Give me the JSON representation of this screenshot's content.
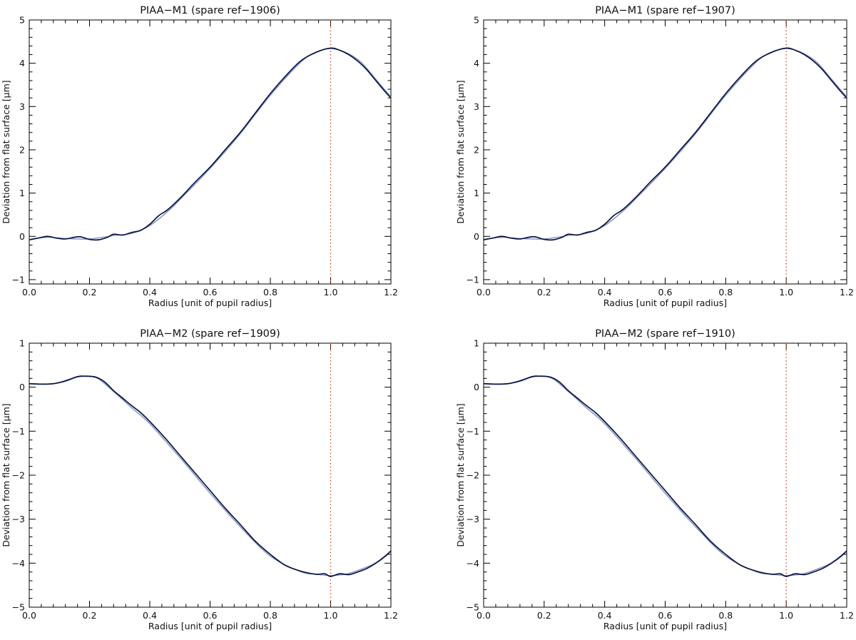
{
  "chart_data": [
    {
      "type": "line",
      "title": "PIAA−M1 (spare ref−1906)",
      "xlabel": "Radius [unit of pupil radius]",
      "ylabel": "Deviation from flat surface [",
      "ylabel_unit": "μm]",
      "xlim": [
        0,
        1.2
      ],
      "ylim": [
        -1.1,
        5
      ],
      "xticks": [
        "0.0",
        "0.2",
        "0.4",
        "0.6",
        "0.8",
        "1.0",
        "1.2"
      ],
      "yticks": [
        "−1",
        "0",
        "1",
        "2",
        "3",
        "4",
        "5"
      ],
      "ref_line_x": 1.0,
      "grid": false,
      "colors": {
        "measured": "#0b1440",
        "design": "#7f8fc7",
        "ref": "#d24a2a"
      },
      "series": [
        {
          "x": [
            0,
            0.03,
            0.06,
            0.09,
            0.12,
            0.15,
            0.17,
            0.2,
            0.23,
            0.26,
            0.28,
            0.31,
            0.34,
            0.37,
            0.4,
            0.43,
            0.46,
            0.5,
            0.55,
            0.6,
            0.65,
            0.7,
            0.75,
            0.8,
            0.85,
            0.9,
            0.95,
            1.0,
            1.03,
            1.06,
            1.09,
            1.12,
            1.15,
            1.18,
            1.2
          ],
          "values": [
            -0.08,
            -0.04,
            0.0,
            -0.04,
            -0.06,
            -0.02,
            -0.01,
            -0.07,
            -0.08,
            -0.02,
            0.05,
            0.03,
            0.09,
            0.14,
            0.28,
            0.48,
            0.62,
            0.88,
            1.25,
            1.6,
            2.0,
            2.4,
            2.85,
            3.3,
            3.7,
            4.05,
            4.25,
            4.35,
            4.3,
            4.2,
            4.05,
            3.85,
            3.6,
            3.35,
            3.2
          ]
        },
        {
          "x": [
            0,
            0.06,
            0.12,
            0.2,
            0.28,
            0.34,
            0.4,
            0.46,
            0.5,
            0.6,
            0.7,
            0.8,
            0.9,
            0.95,
            1.0,
            1.05,
            1.1,
            1.15,
            1.2
          ],
          "values": [
            -0.07,
            -0.02,
            -0.05,
            -0.06,
            0.02,
            0.07,
            0.25,
            0.58,
            0.85,
            1.57,
            2.37,
            3.26,
            4.02,
            4.24,
            4.34,
            4.25,
            4.03,
            3.63,
            3.22
          ]
        }
      ]
    },
    {
      "type": "line",
      "title": "PIAA−M1 (spare ref−1907)",
      "xlabel": "Radius [unit of pupil radius]",
      "ylabel": "Deviation from flat surface [",
      "ylabel_unit": "μm]",
      "xlim": [
        0,
        1.2
      ],
      "ylim": [
        -1.1,
        5
      ],
      "xticks": [
        "0.0",
        "0.2",
        "0.4",
        "0.6",
        "0.8",
        "1.0",
        "1.2"
      ],
      "yticks": [
        "−1",
        "0",
        "1",
        "2",
        "3",
        "4",
        "5"
      ],
      "ref_line_x": 1.0,
      "grid": false,
      "colors": {
        "measured": "#0b1440",
        "design": "#7f8fc7",
        "ref": "#d24a2a"
      },
      "series": [
        {
          "x": [
            0,
            0.03,
            0.06,
            0.09,
            0.12,
            0.15,
            0.17,
            0.2,
            0.23,
            0.26,
            0.28,
            0.31,
            0.34,
            0.37,
            0.4,
            0.43,
            0.46,
            0.5,
            0.55,
            0.6,
            0.65,
            0.7,
            0.75,
            0.8,
            0.85,
            0.9,
            0.95,
            1.0,
            1.03,
            1.06,
            1.09,
            1.12,
            1.15,
            1.18,
            1.2
          ],
          "values": [
            -0.08,
            -0.04,
            0.0,
            -0.04,
            -0.06,
            -0.02,
            -0.01,
            -0.07,
            -0.08,
            -0.02,
            0.05,
            0.03,
            0.09,
            0.14,
            0.28,
            0.48,
            0.62,
            0.88,
            1.25,
            1.6,
            2.0,
            2.4,
            2.85,
            3.3,
            3.7,
            4.05,
            4.25,
            4.35,
            4.3,
            4.2,
            4.05,
            3.85,
            3.6,
            3.35,
            3.2
          ]
        },
        {
          "x": [
            0,
            0.06,
            0.12,
            0.2,
            0.28,
            0.34,
            0.4,
            0.46,
            0.5,
            0.6,
            0.7,
            0.8,
            0.9,
            0.95,
            1.0,
            1.05,
            1.1,
            1.15,
            1.2
          ],
          "values": [
            -0.07,
            -0.02,
            -0.05,
            -0.06,
            0.02,
            0.07,
            0.25,
            0.58,
            0.85,
            1.57,
            2.37,
            3.26,
            4.02,
            4.24,
            4.34,
            4.25,
            4.03,
            3.63,
            3.22
          ]
        }
      ]
    },
    {
      "type": "line",
      "title": "PIAA−M2 (spare ref−1909)",
      "xlabel": "Radius [unit of pupil radius]",
      "ylabel": "Deviation from flat surface [",
      "ylabel_unit": "μm]",
      "xlim": [
        0,
        1.2
      ],
      "ylim": [
        -5,
        1
      ],
      "xticks": [
        "0.0",
        "0.2",
        "0.4",
        "0.6",
        "0.8",
        "1.0",
        "1.2"
      ],
      "yticks": [
        "−5",
        "−4",
        "−3",
        "−2",
        "−1",
        "0",
        "1"
      ],
      "ref_line_x": 1.0,
      "grid": false,
      "colors": {
        "measured": "#0b1440",
        "design": "#7f8fc7",
        "ref": "#d24a2a"
      },
      "series": [
        {
          "x": [
            0,
            0.04,
            0.08,
            0.12,
            0.16,
            0.18,
            0.22,
            0.25,
            0.28,
            0.31,
            0.34,
            0.37,
            0.4,
            0.45,
            0.5,
            0.55,
            0.6,
            0.65,
            0.7,
            0.75,
            0.8,
            0.85,
            0.9,
            0.95,
            0.98,
            1.0,
            1.03,
            1.06,
            1.09,
            1.12,
            1.15,
            1.18,
            1.2
          ],
          "values": [
            0.08,
            0.07,
            0.08,
            0.14,
            0.24,
            0.25,
            0.23,
            0.12,
            -0.08,
            -0.25,
            -0.42,
            -0.58,
            -0.78,
            -1.15,
            -1.55,
            -1.95,
            -2.35,
            -2.75,
            -3.12,
            -3.5,
            -3.8,
            -4.05,
            -4.18,
            -4.25,
            -4.24,
            -4.3,
            -4.24,
            -4.26,
            -4.2,
            -4.12,
            -4.0,
            -3.85,
            -3.72
          ]
        },
        {
          "x": [
            0,
            0.08,
            0.16,
            0.22,
            0.28,
            0.34,
            0.4,
            0.5,
            0.6,
            0.7,
            0.8,
            0.9,
            0.95,
            1.0,
            1.05,
            1.1,
            1.15,
            1.2
          ],
          "values": [
            0.08,
            0.08,
            0.23,
            0.22,
            -0.1,
            -0.47,
            -0.83,
            -1.6,
            -2.41,
            -3.17,
            -3.84,
            -4.19,
            -4.25,
            -4.28,
            -4.25,
            -4.14,
            -3.99,
            -3.72
          ]
        }
      ]
    },
    {
      "type": "line",
      "title": "PIAA−M2 (spare ref−1910)",
      "xlabel": "Radius [unit of pupil radius]",
      "ylabel": "Deviation from flat surface [",
      "ylabel_unit": "μm]",
      "xlim": [
        0,
        1.2
      ],
      "ylim": [
        -5,
        1
      ],
      "xticks": [
        "0.0",
        "0.2",
        "0.4",
        "0.6",
        "0.8",
        "1.0",
        "1.2"
      ],
      "yticks": [
        "−5",
        "−4",
        "−3",
        "−2",
        "−1",
        "0",
        "1"
      ],
      "ref_line_x": 1.0,
      "grid": false,
      "colors": {
        "measured": "#0b1440",
        "design": "#7f8fc7",
        "ref": "#d24a2a"
      },
      "series": [
        {
          "x": [
            0,
            0.04,
            0.08,
            0.12,
            0.16,
            0.18,
            0.22,
            0.25,
            0.28,
            0.31,
            0.34,
            0.37,
            0.4,
            0.45,
            0.5,
            0.55,
            0.6,
            0.65,
            0.7,
            0.75,
            0.8,
            0.85,
            0.9,
            0.95,
            0.98,
            1.0,
            1.03,
            1.06,
            1.09,
            1.12,
            1.15,
            1.18,
            1.2
          ],
          "values": [
            0.08,
            0.07,
            0.08,
            0.14,
            0.24,
            0.25,
            0.23,
            0.12,
            -0.08,
            -0.25,
            -0.42,
            -0.58,
            -0.78,
            -1.15,
            -1.55,
            -1.95,
            -2.35,
            -2.75,
            -3.12,
            -3.5,
            -3.8,
            -4.05,
            -4.18,
            -4.25,
            -4.24,
            -4.3,
            -4.24,
            -4.26,
            -4.2,
            -4.12,
            -4.0,
            -3.85,
            -3.72
          ]
        },
        {
          "x": [
            0,
            0.08,
            0.16,
            0.22,
            0.28,
            0.34,
            0.4,
            0.5,
            0.6,
            0.7,
            0.8,
            0.9,
            0.95,
            1.0,
            1.05,
            1.1,
            1.15,
            1.2
          ],
          "values": [
            0.08,
            0.08,
            0.23,
            0.22,
            -0.1,
            -0.47,
            -0.83,
            -1.6,
            -2.41,
            -3.17,
            -3.84,
            -4.19,
            -4.25,
            -4.28,
            -4.25,
            -4.14,
            -3.99,
            -3.72
          ]
        }
      ]
    }
  ]
}
